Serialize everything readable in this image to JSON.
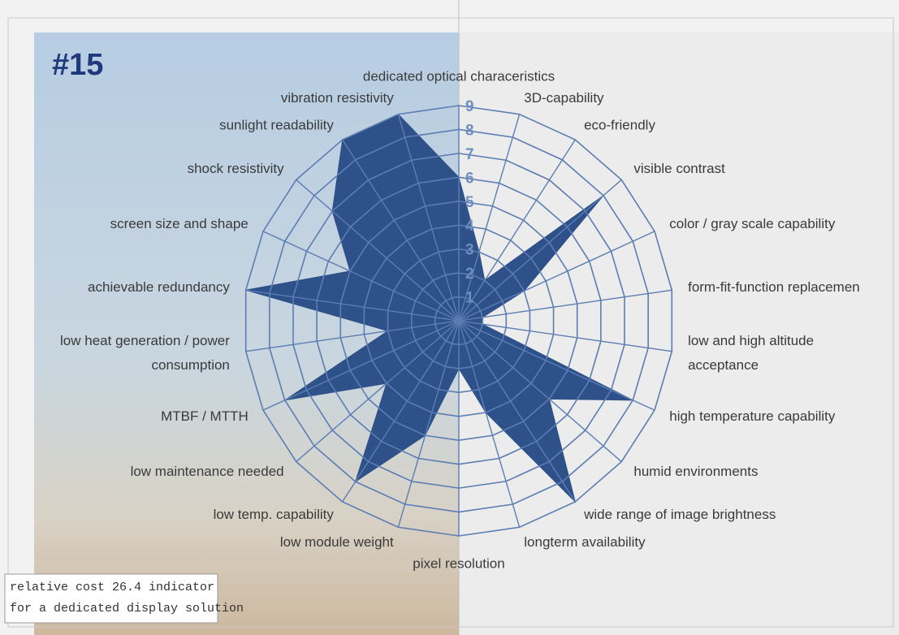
{
  "chart_data": {
    "type": "radar",
    "title": "#15",
    "note": [
      "relative cost 26.4 indicator",
      "for a dedicated display solution"
    ],
    "categories": [
      "dedicated optical characeristics",
      "3D-capability",
      "eco-friendly",
      "visible contrast",
      "color / gray scale capability",
      "form-fit-function replacemen",
      [
        "low and high altitude",
        "acceptance"
      ],
      "high temperature capability",
      "humid environments",
      "wide range of image brightness",
      "longterm availability",
      "pixel resolution",
      "low module weight",
      "low temp. capability",
      "low maintenance needed",
      "MTBF / MTTH",
      [
        "low heat generation / power",
        "consumption"
      ],
      "achievable redundancy",
      "screen size and shape",
      "shock  resistivity",
      "sunlight readability",
      "vibration resistivity"
    ],
    "values": [
      6,
      3,
      2,
      8,
      3,
      1,
      1,
      8,
      5,
      9,
      4,
      2,
      5,
      8,
      4,
      8,
      3,
      9,
      5,
      7,
      9,
      9
    ],
    "color": "#2e5189",
    "rlim": [
      0,
      9
    ],
    "rticks": [
      1,
      2,
      3,
      4,
      5,
      6,
      7,
      8,
      9
    ]
  }
}
